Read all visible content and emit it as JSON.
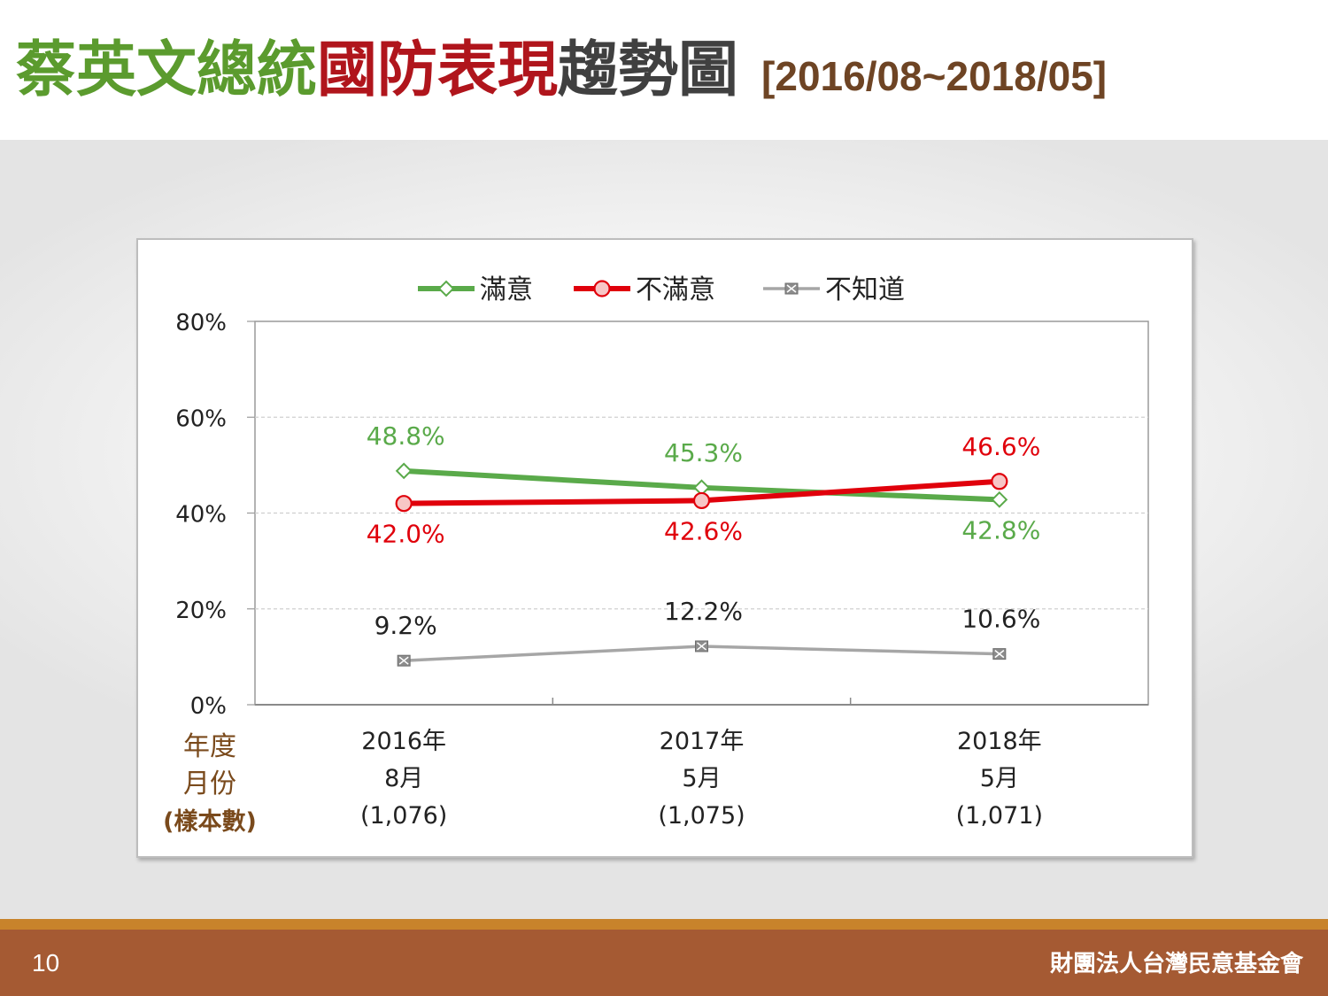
{
  "title": {
    "part_green": "蔡英文總統",
    "part_red": "國防表現",
    "part_gray": "趨勢圖",
    "period": "[2016/08~2018/05]"
  },
  "footer": {
    "page_number": "10",
    "organization": "財團法人台灣民意基金會"
  },
  "colors": {
    "satisfied": "#5aaa4a",
    "dissatisfied": "#e0000b",
    "unknown": "#a6a6a6",
    "row_label": "#7a4a1c",
    "title_green": "#5b9b2e",
    "title_red": "#b0151c",
    "footer": "#a55a33"
  },
  "chart_data": {
    "type": "line",
    "categories": [
      "2016年|8月|(1,076)",
      "2017年|5月|(1,075)",
      "2018年|5月|(1,071)"
    ],
    "category_lines": [
      [
        "2016年",
        "8月",
        "(1,076)"
      ],
      [
        "2017年",
        "5月",
        "(1,075)"
      ],
      [
        "2018年",
        "5月",
        "(1,071)"
      ]
    ],
    "row_labels": [
      "年度",
      "月份",
      "(樣本數)"
    ],
    "ylim": [
      0,
      80
    ],
    "yticks": [
      0,
      20,
      40,
      60,
      80
    ],
    "ytick_labels": [
      "0%",
      "20%",
      "40%",
      "60%",
      "80%"
    ],
    "grid": true,
    "legend_position": "top",
    "series": [
      {
        "name": "滿意",
        "values": [
          48.8,
          45.3,
          42.8
        ],
        "labels": [
          "48.8%",
          "45.3%",
          "42.8%"
        ],
        "marker": "diamond",
        "color": "#5aaa4a"
      },
      {
        "name": "不滿意",
        "values": [
          42.0,
          42.6,
          46.6
        ],
        "labels": [
          "42.0%",
          "42.6%",
          "46.6%"
        ],
        "marker": "circle",
        "color": "#e0000b"
      },
      {
        "name": "不知道",
        "values": [
          9.2,
          12.2,
          10.6
        ],
        "labels": [
          "9.2%",
          "12.2%",
          "10.6%"
        ],
        "marker": "x-square",
        "color": "#a6a6a6"
      }
    ]
  }
}
